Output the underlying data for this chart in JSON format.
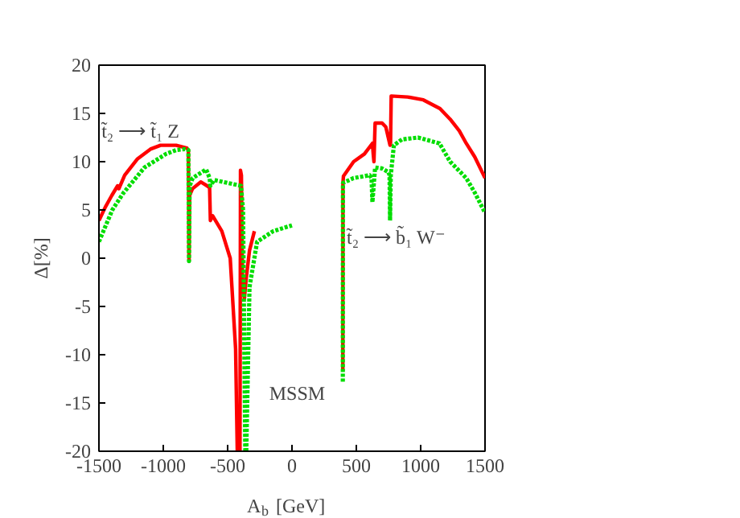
{
  "chart_data": {
    "type": "line",
    "xlabel": "A$_{b}$ [GeV]",
    "ylabel": "Δ[%]",
    "xlim": [
      -1500,
      1500
    ],
    "ylim": [
      -20,
      20
    ],
    "xticks": [
      -1500,
      -1000,
      -500,
      0,
      500,
      1000,
      1500
    ],
    "yticks": [
      -20,
      -15,
      -10,
      -5,
      0,
      5,
      10,
      15,
      20
    ],
    "grid": false,
    "series": [
      {
        "color": "#ff0000",
        "line_style": "solid",
        "x": [
          -1500,
          -1450,
          -1400,
          -1355,
          -1345,
          -1300,
          -1200,
          -1100,
          -1021,
          -900,
          -816,
          -805,
          -800,
          -795,
          -773,
          -709,
          -660,
          -640,
          -634,
          -617,
          -545,
          -480,
          -438,
          -425,
          -415,
          -404,
          -400,
          -393,
          -385,
          -370,
          -355,
          -330,
          -292,
          0,
          395,
          396,
          400,
          479,
          563,
          625,
          632,
          637,
          646,
          700,
          729,
          762,
          766,
          771,
          900,
          1021,
          1150,
          1229,
          1300,
          1354,
          1420,
          1500
        ],
        "values": [
          3.9,
          5.3,
          6.5,
          7.5,
          7.2,
          8.6,
          10.3,
          11.3,
          11.7,
          11.7,
          11.4,
          11.2,
          -0.3,
          6.5,
          7.2,
          7.9,
          7.5,
          7.3,
          3.9,
          4.4,
          2.8,
          0,
          -9.4,
          -20,
          null,
          -20,
          9.1,
          8.6,
          -2,
          -4.2,
          -2,
          0.8,
          2.8,
          null,
          -11.7,
          7.8,
          8.5,
          10,
          10.8,
          11.9,
          10.7,
          10,
          14,
          14,
          13.6,
          11.7,
          12,
          16.8,
          16.7,
          16.4,
          15.5,
          14.4,
          13.2,
          11.9,
          10.5,
          8.3
        ]
      },
      {
        "color": "#00dd00",
        "line_style": "dotted",
        "x": [
          -1500,
          -1396,
          -1313,
          -1146,
          -979,
          -900,
          -833,
          -805,
          -800,
          -795,
          -771,
          -667,
          -640,
          -634,
          -604,
          -500,
          -396,
          -380,
          -363,
          null,
          -355,
          -330,
          -271,
          -146,
          0,
          null,
          395,
          396,
          479,
          604,
          618,
          625,
          646,
          700,
          750,
          758,
          762,
          768,
          792,
          854,
          979,
          1146,
          1229,
          1354,
          1420,
          1500
        ],
        "values": [
          1.7,
          5,
          6.7,
          9.4,
          10.8,
          11.2,
          11.3,
          11.2,
          -0.3,
          7.5,
          8.3,
          9.2,
          8.3,
          7.5,
          8.1,
          7.8,
          7.5,
          5,
          -20,
          null,
          -20,
          -3,
          1.7,
          2.8,
          3.4,
          null,
          -12.8,
          7.8,
          8.3,
          8.6,
          8.3,
          5.8,
          9.4,
          9.3,
          8.9,
          8.6,
          3.9,
          8.6,
          11.7,
          12.3,
          12.5,
          11.9,
          10,
          8.3,
          6.8,
          4.7
        ]
      }
    ],
    "annotations": [
      "t̃₂ ⟶ t̃₁ Z",
      "t̃₂ ⟶ b̃₁ W⁻",
      "MSSM"
    ]
  }
}
